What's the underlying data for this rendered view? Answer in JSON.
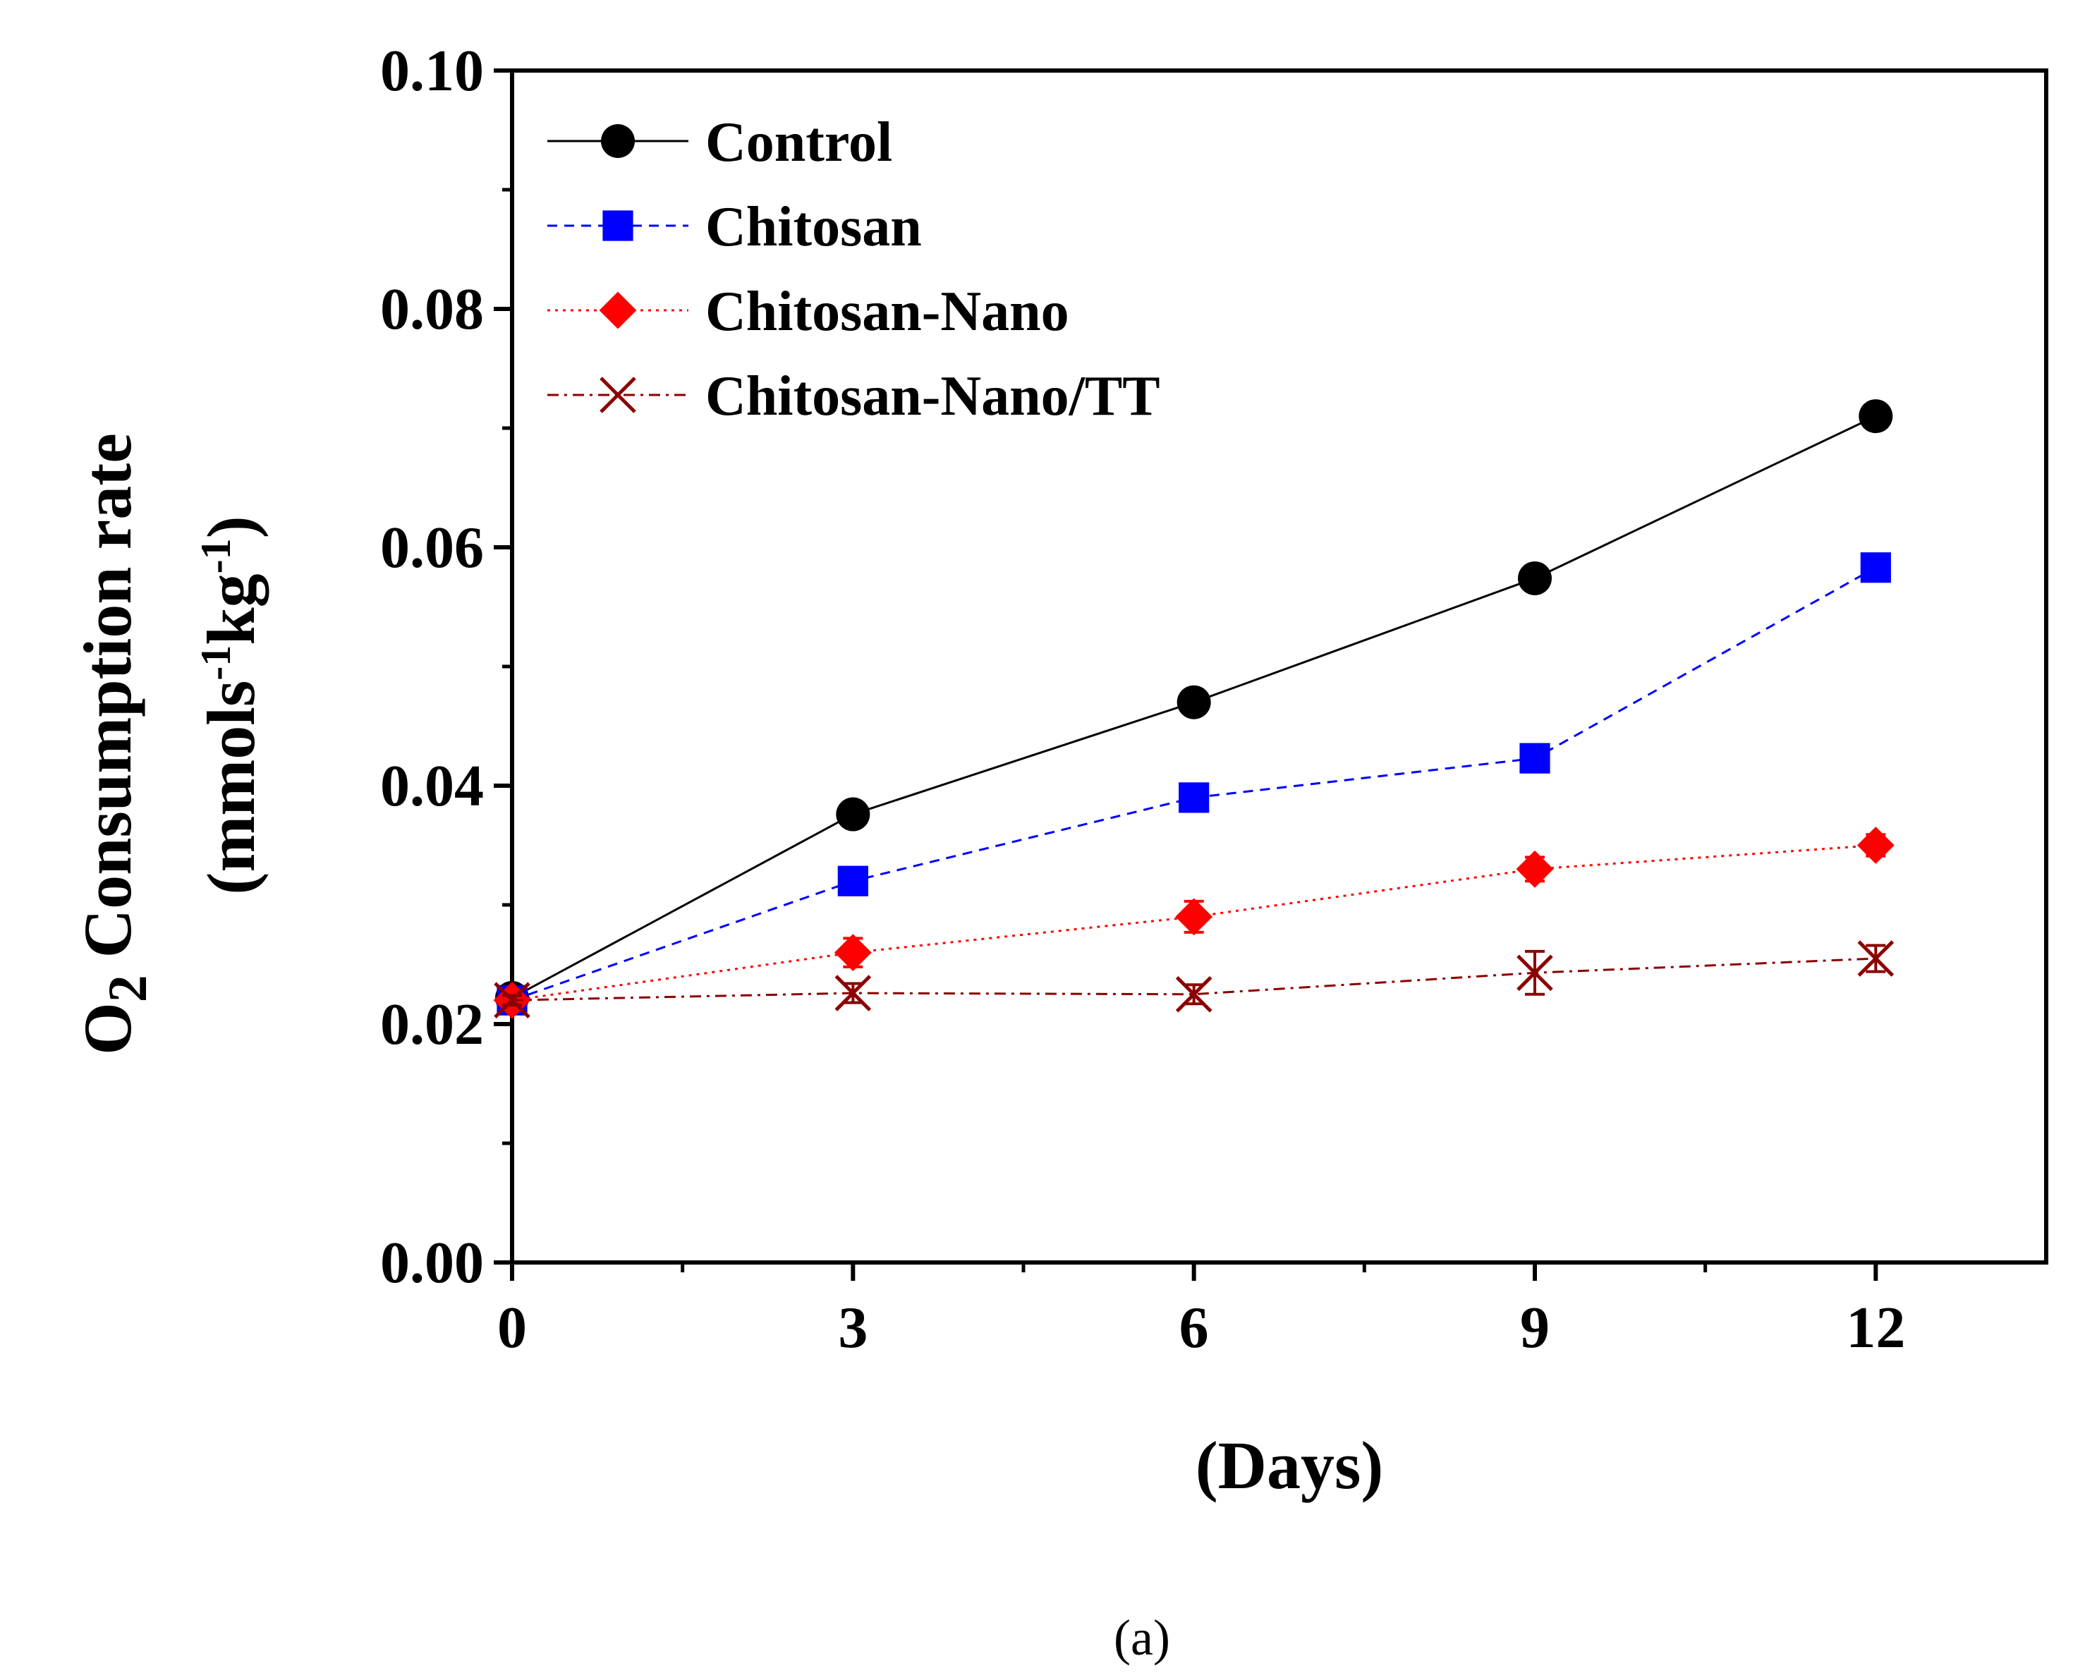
{
  "chart_data": {
    "type": "line",
    "title": "",
    "xlabel": "(Days)",
    "ylabel": {
      "main": "O",
      "main_sub": "2",
      "main_rest": " Consumption rate",
      "unit_open": "(mmols",
      "unit_sup1": "-1",
      "unit_mid": "kg",
      "unit_sup2": "-1",
      "unit_close": ")"
    },
    "x": [
      0,
      3,
      6,
      9,
      12
    ],
    "xlim": [
      0,
      13.5
    ],
    "ylim": [
      0,
      0.1
    ],
    "xticks": [
      0,
      3,
      6,
      9,
      12
    ],
    "xtick_labels": [
      "0",
      "3",
      "6",
      "9",
      "12"
    ],
    "yticks": [
      0,
      0.02,
      0.04,
      0.06,
      0.08,
      0.1
    ],
    "ytick_labels": [
      "0.00",
      "0.02",
      "0.04",
      "0.06",
      "0.08",
      "0.10"
    ],
    "grid": false,
    "legend_position": "top-left",
    "panel_label": "(a)",
    "series": [
      {
        "name": "Control",
        "color": "#000000",
        "marker": "circle",
        "dash": "solid",
        "values": [
          0.0222,
          0.0376,
          0.047,
          0.0574,
          0.071
        ],
        "errors": [
          0.0004,
          0.0005,
          0.0005,
          0.0005,
          0.0005
        ]
      },
      {
        "name": "Chitosan",
        "color": "#0000ff",
        "marker": "square",
        "dash": "dashed",
        "values": [
          0.022,
          0.032,
          0.039,
          0.0423,
          0.0583
        ],
        "errors": [
          0.0004,
          0.0008,
          0.0008,
          0.0006,
          0.0008
        ]
      },
      {
        "name": "Chitosan-Nano",
        "color": "#ff0000",
        "marker": "diamond",
        "dash": "dotted",
        "values": [
          0.022,
          0.026,
          0.029,
          0.033,
          0.035
        ],
        "errors": [
          0.0004,
          0.0012,
          0.0013,
          0.001,
          0.0009
        ]
      },
      {
        "name": "Chitosan-Nano/TT",
        "color": "#8b0000",
        "marker": "x",
        "dash": "dashdot",
        "values": [
          0.022,
          0.0226,
          0.0225,
          0.0243,
          0.0255
        ],
        "errors": [
          0.0004,
          0.0008,
          0.0008,
          0.0018,
          0.0011
        ]
      }
    ]
  }
}
